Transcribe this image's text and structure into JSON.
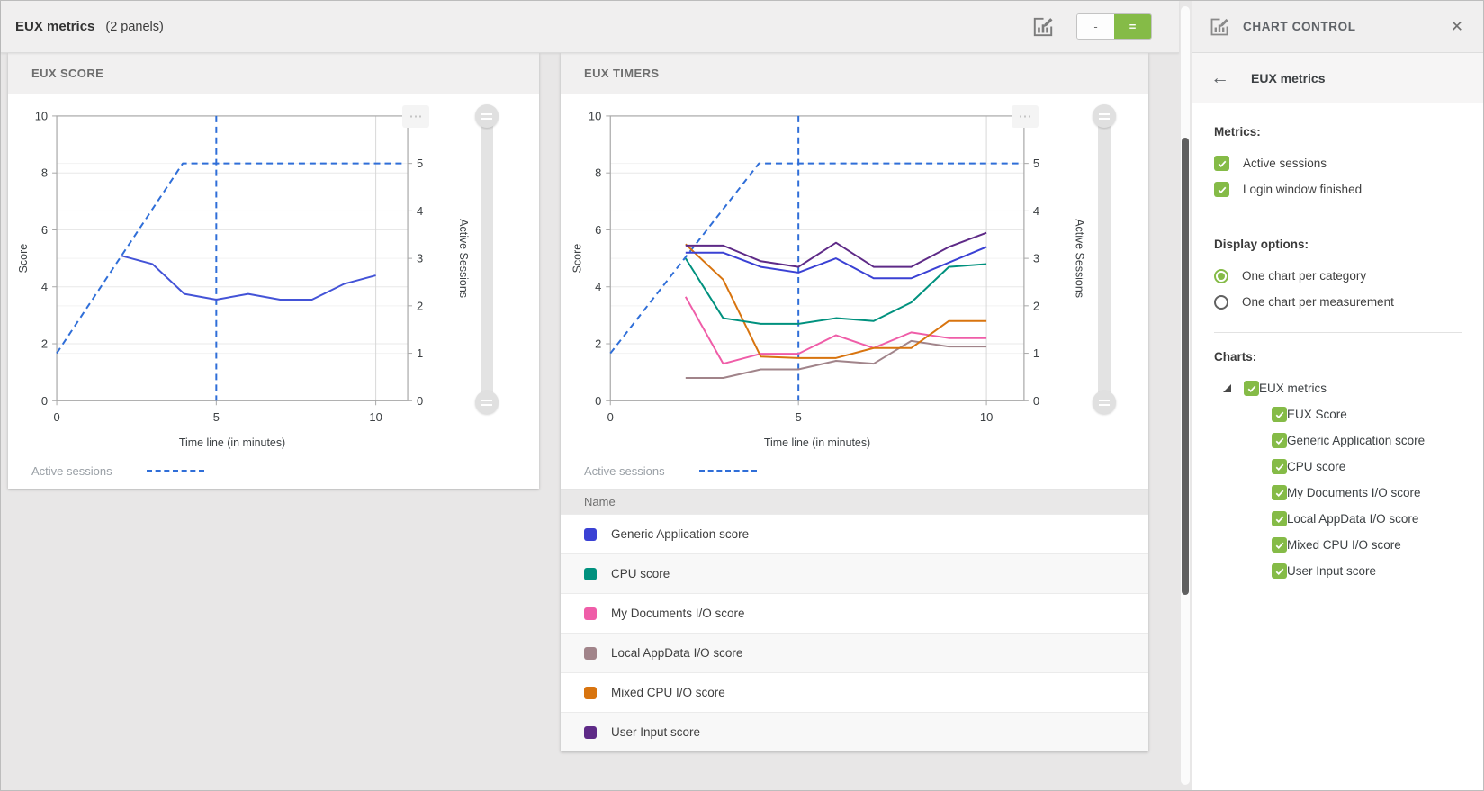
{
  "toolbar": {
    "title": "EUX metrics",
    "panel_count": "(2 panels)",
    "collapse_label": "-",
    "expand_label": "=",
    "more_label": "⋯"
  },
  "colors": {
    "accent_green": "#85bb47",
    "dashed_blue": "#2f6ed8",
    "eux_score_blue": "#4353d7",
    "generic_app_blue": "#3a41d4",
    "cpu_teal": "#00917e",
    "my_docs_pink": "#ef5da8",
    "local_appdata_mauve": "#a1848a",
    "mixed_cpu_orange": "#d8740f",
    "user_input_purple": "#5e2a87"
  },
  "panels": [
    {
      "title": "EUX SCORE",
      "legend_label": "Active sessions"
    },
    {
      "title": "EUX TIMERS",
      "legend_label": "Active sessions"
    }
  ],
  "table": {
    "header": "Name",
    "rows": [
      {
        "label": "Generic Application score",
        "color": "#3a41d4"
      },
      {
        "label": "CPU score",
        "color": "#00917e"
      },
      {
        "label": "My Documents I/O score",
        "color": "#ef5da8"
      },
      {
        "label": "Local AppData I/O score",
        "color": "#a1848a"
      },
      {
        "label": "Mixed CPU I/O score",
        "color": "#d8740f"
      },
      {
        "label": "User Input score",
        "color": "#5e2a87"
      }
    ]
  },
  "chart_data": [
    {
      "type": "line",
      "title": "EUX SCORE",
      "xlabel": "Time line (in minutes)",
      "ylabel_left": "Score",
      "ylabel_right": "Active Sessions",
      "xlim": [
        0,
        11
      ],
      "ylim_left": [
        0,
        10
      ],
      "ylim_right": [
        0,
        6
      ],
      "xticks": [
        0,
        5,
        10
      ],
      "yticks_left": [
        0,
        2,
        4,
        6,
        8,
        10
      ],
      "yticks_right": [
        0,
        1,
        2,
        3,
        4,
        5,
        6
      ],
      "grid": true,
      "legend_position": "bottom-left",
      "marker_x": 5,
      "marker_color": "#2f6ed8",
      "series": [
        {
          "name": "Active sessions",
          "color": "#2f6ed8",
          "dash": true,
          "axis": "right",
          "points": [
            [
              0,
              1
            ],
            [
              3.95,
              5
            ],
            [
              10.85,
              5
            ]
          ]
        },
        {
          "name": "EUX Score",
          "color": "#4353d7",
          "dash": false,
          "axis": "left",
          "points": [
            [
              2,
              5.1
            ],
            [
              3,
              4.8
            ],
            [
              4,
              3.75
            ],
            [
              5,
              3.55
            ],
            [
              6,
              3.75
            ],
            [
              7,
              3.55
            ],
            [
              8,
              3.55
            ],
            [
              9,
              4.1
            ],
            [
              10,
              4.4
            ]
          ]
        }
      ]
    },
    {
      "type": "line",
      "title": "EUX TIMERS",
      "xlabel": "Time line (in minutes)",
      "ylabel_left": "Score",
      "ylabel_right": "Active Sessions",
      "xlim": [
        0,
        11
      ],
      "ylim_left": [
        0,
        10
      ],
      "ylim_right": [
        0,
        6
      ],
      "xticks": [
        0,
        5,
        10
      ],
      "yticks_left": [
        0,
        2,
        4,
        6,
        8,
        10
      ],
      "yticks_right": [
        0,
        1,
        2,
        3,
        4,
        5,
        6
      ],
      "grid": true,
      "legend_position": "bottom-left",
      "marker_x": 5,
      "marker_color": "#2f6ed8",
      "series": [
        {
          "name": "Active sessions",
          "color": "#2f6ed8",
          "dash": true,
          "axis": "right",
          "points": [
            [
              0,
              1
            ],
            [
              3.95,
              5
            ],
            [
              10.85,
              5
            ]
          ]
        },
        {
          "name": "Local AppData I/O score",
          "color": "#a1848a",
          "dash": false,
          "axis": "left",
          "points": [
            [
              2,
              0.8
            ],
            [
              3,
              0.8
            ],
            [
              4,
              1.1
            ],
            [
              5,
              1.1
            ],
            [
              6,
              1.4
            ],
            [
              7,
              1.3
            ],
            [
              8,
              2.1
            ],
            [
              9,
              1.9
            ],
            [
              10,
              1.9
            ]
          ]
        },
        {
          "name": "My Documents I/O score",
          "color": "#ef5da8",
          "dash": false,
          "axis": "left",
          "points": [
            [
              2,
              3.65
            ],
            [
              3,
              1.3
            ],
            [
              4,
              1.65
            ],
            [
              5,
              1.65
            ],
            [
              6,
              2.3
            ],
            [
              7,
              1.85
            ],
            [
              8,
              2.4
            ],
            [
              9,
              2.2
            ],
            [
              10,
              2.2
            ]
          ]
        },
        {
          "name": "Mixed CPU I/O score",
          "color": "#d8740f",
          "dash": false,
          "axis": "left",
          "points": [
            [
              2,
              5.5
            ],
            [
              3,
              4.25
            ],
            [
              4,
              1.55
            ],
            [
              5,
              1.5
            ],
            [
              6,
              1.5
            ],
            [
              7,
              1.85
            ],
            [
              8,
              1.85
            ],
            [
              9,
              2.8
            ],
            [
              10,
              2.8
            ]
          ]
        },
        {
          "name": "CPU score",
          "color": "#00917e",
          "dash": false,
          "axis": "left",
          "points": [
            [
              2,
              5.0
            ],
            [
              3,
              2.9
            ],
            [
              4,
              2.7
            ],
            [
              5,
              2.7
            ],
            [
              6,
              2.9
            ],
            [
              7,
              2.8
            ],
            [
              8,
              3.45
            ],
            [
              9,
              4.7
            ],
            [
              10,
              4.8
            ]
          ]
        },
        {
          "name": "Generic Application score",
          "color": "#3a41d4",
          "dash": false,
          "axis": "left",
          "points": [
            [
              2,
              5.2
            ],
            [
              3,
              5.2
            ],
            [
              4,
              4.7
            ],
            [
              5,
              4.5
            ],
            [
              6,
              5.0
            ],
            [
              7,
              4.3
            ],
            [
              8,
              4.3
            ],
            [
              9,
              4.85
            ],
            [
              10,
              5.4
            ]
          ]
        },
        {
          "name": "User Input score",
          "color": "#5e2a87",
          "dash": false,
          "axis": "left",
          "points": [
            [
              2,
              5.45
            ],
            [
              3,
              5.45
            ],
            [
              4,
              4.9
            ],
            [
              5,
              4.7
            ],
            [
              6,
              5.55
            ],
            [
              7,
              4.7
            ],
            [
              8,
              4.7
            ],
            [
              9,
              5.4
            ],
            [
              10,
              5.9
            ]
          ]
        }
      ]
    }
  ],
  "sidebar": {
    "header": {
      "title": "CHART CONTROL",
      "close_label": "✕"
    },
    "breadcrumb": {
      "back_label": "←",
      "title": "EUX metrics"
    },
    "metrics": {
      "label": "Metrics:",
      "items": [
        {
          "label": "Active sessions",
          "checked": true
        },
        {
          "label": "Login window finished",
          "checked": true
        }
      ]
    },
    "display_options": {
      "label": "Display options:",
      "options": [
        {
          "label": "One chart per category",
          "selected": true
        },
        {
          "label": "One chart per measurement",
          "selected": false
        }
      ]
    },
    "charts": {
      "label": "Charts:",
      "root": {
        "label": "EUX metrics",
        "checked": true
      },
      "children": [
        {
          "label": "EUX Score",
          "checked": true
        },
        {
          "label": "Generic Application score",
          "checked": true
        },
        {
          "label": "CPU score",
          "checked": true
        },
        {
          "label": "My Documents I/O score",
          "checked": true
        },
        {
          "label": "Local AppData I/O score",
          "checked": true
        },
        {
          "label": "Mixed CPU I/O score",
          "checked": true
        },
        {
          "label": "User Input score",
          "checked": true
        }
      ]
    }
  }
}
